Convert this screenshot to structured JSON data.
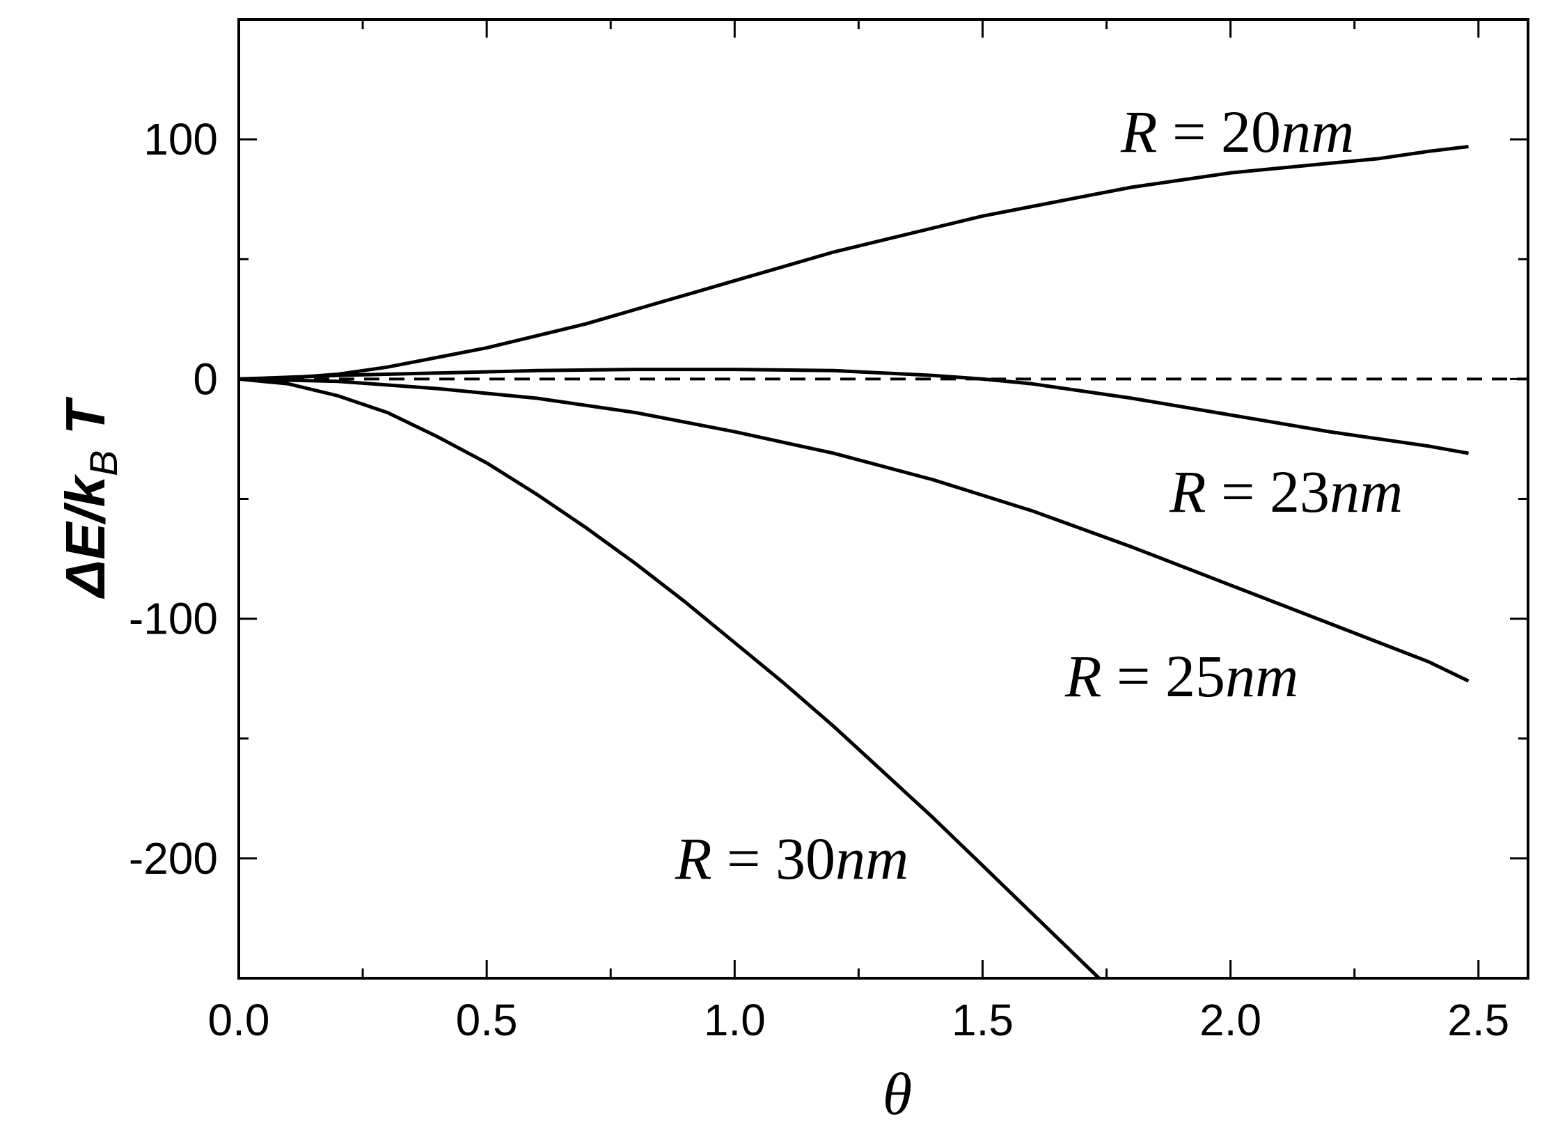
{
  "chart_data": {
    "type": "line",
    "title": "",
    "xlabel": "θ",
    "ylabel": "ΔE/k_B T",
    "ylabel_parts": {
      "main": "ΔE/k",
      "sub": "B",
      "tail": "T"
    },
    "xlim": [
      0,
      2.6
    ],
    "ylim": [
      -250,
      150
    ],
    "x_ticks": [
      0.0,
      0.5,
      1.0,
      1.5,
      2.0,
      2.5
    ],
    "x_tick_labels": [
      "0.0",
      "0.5",
      "1.0",
      "1.5",
      "2.0",
      "2.5"
    ],
    "y_ticks": [
      -200,
      -100,
      0,
      100
    ],
    "y_tick_labels": [
      "-200",
      "-100",
      "0",
      "100"
    ],
    "reference_line": {
      "y": 0,
      "style": "dashed"
    },
    "series": [
      {
        "name": "R = 20nm",
        "label_parts": {
          "var": "R",
          "eq": " = ",
          "num": "20",
          "unit": "nm"
        },
        "x": [
          0,
          0.1,
          0.2,
          0.3,
          0.4,
          0.5,
          0.6,
          0.7,
          0.8,
          0.9,
          1.0,
          1.1,
          1.2,
          1.3,
          1.4,
          1.5,
          1.6,
          1.7,
          1.8,
          1.9,
          2.0,
          2.1,
          2.2,
          2.3,
          2.4,
          2.48
        ],
        "y": [
          0,
          0.5,
          2,
          5,
          9,
          13,
          18,
          23,
          29,
          35,
          41,
          47,
          53,
          58,
          63,
          68,
          72,
          76,
          80,
          83,
          86,
          88,
          90,
          92,
          95,
          97
        ]
      },
      {
        "name": "R = 23nm",
        "label_parts": {
          "var": "R",
          "eq": " = ",
          "num": "23",
          "unit": "nm"
        },
        "x": [
          0,
          0.2,
          0.4,
          0.6,
          0.8,
          1.0,
          1.2,
          1.4,
          1.5,
          1.6,
          1.8,
          2.0,
          2.2,
          2.4,
          2.48
        ],
        "y": [
          0,
          1.5,
          2.5,
          3.5,
          4,
          4,
          3.5,
          1.5,
          0,
          -2,
          -8,
          -15,
          -22,
          -28,
          -31
        ]
      },
      {
        "name": "R = 25nm",
        "label_parts": {
          "var": "R",
          "eq": " = ",
          "num": "25",
          "unit": "nm"
        },
        "x": [
          0,
          0.2,
          0.4,
          0.6,
          0.8,
          1.0,
          1.2,
          1.4,
          1.6,
          1.8,
          2.0,
          2.2,
          2.4,
          2.48
        ],
        "y": [
          0,
          -1,
          -4,
          -8,
          -14,
          -22,
          -31,
          -42,
          -55,
          -70,
          -86,
          -102,
          -118,
          -126
        ]
      },
      {
        "name": "R = 30nm",
        "label_parts": {
          "var": "R",
          "eq": " = ",
          "num": "30",
          "unit": "nm"
        },
        "x": [
          0,
          0.1,
          0.2,
          0.3,
          0.4,
          0.5,
          0.6,
          0.7,
          0.8,
          0.9,
          1.0,
          1.1,
          1.2,
          1.3,
          1.4,
          1.5,
          1.6,
          1.7,
          1.75
        ],
        "y": [
          0,
          -2,
          -7,
          -14,
          -24,
          -35,
          -48,
          -62,
          -77,
          -93,
          -110,
          -127,
          -145,
          -164,
          -183,
          -203,
          -223,
          -243,
          -253
        ]
      }
    ],
    "legend": "none",
    "grid": false
  }
}
